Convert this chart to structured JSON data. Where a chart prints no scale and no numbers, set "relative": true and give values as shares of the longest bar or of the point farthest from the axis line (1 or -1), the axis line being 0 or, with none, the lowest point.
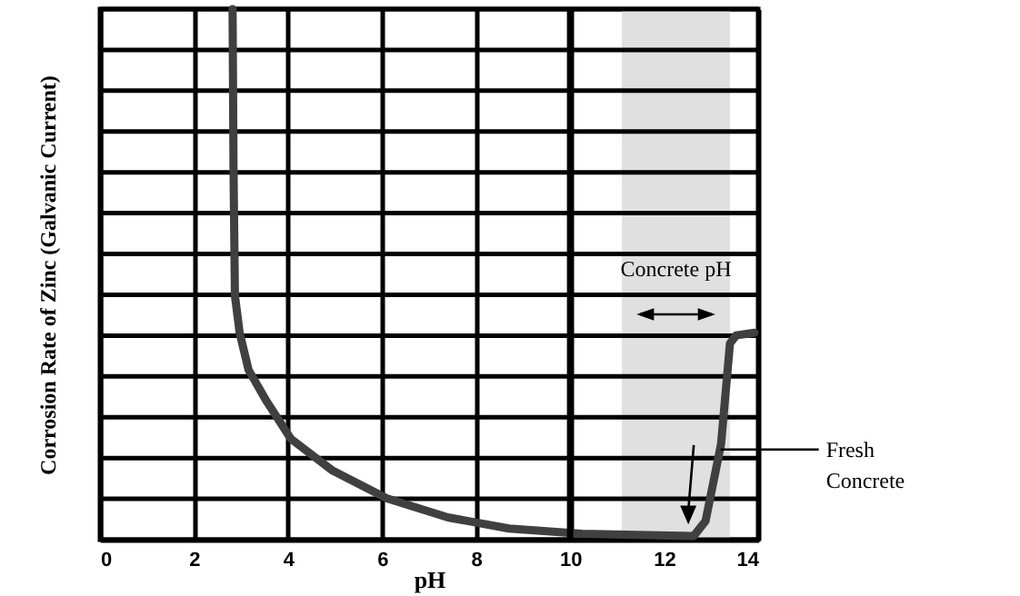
{
  "chart_data": {
    "type": "line",
    "xlabel": "pH",
    "ylabel": "Corrosion Rate  of Zinc (Galvanic Current)",
    "relative": true,
    "grid": true,
    "xlim": [
      0,
      14
    ],
    "xticks": [
      0,
      2,
      4,
      6,
      8,
      10,
      12,
      14
    ],
    "x": [
      2.82,
      2.84,
      2.87,
      2.97,
      3.16,
      3.55,
      4.06,
      4.95,
      6.1,
      7.4,
      8.7,
      10.25,
      12.63,
      12.88,
      13.21,
      13.4,
      13.53,
      13.92
    ],
    "series": [
      {
        "color": "#404040",
        "values": [
          1.0,
          0.7,
          0.46,
          0.39,
          0.32,
          0.26,
          0.19,
          0.13,
          0.078,
          0.042,
          0.021,
          0.011,
          0.007,
          0.035,
          0.18,
          0.37,
          0.385,
          0.39
        ]
      }
    ],
    "bands": [
      {
        "axis": "x",
        "from": 11.1,
        "to": 13.4,
        "label": "Concrete pH",
        "color": "#e0e0e0"
      }
    ],
    "ref_lines": [
      {
        "axis": "x",
        "value": 10
      }
    ],
    "annotations": [
      {
        "text": "Fresh Concrete",
        "x": 13.2,
        "y": 0.17
      }
    ]
  }
}
